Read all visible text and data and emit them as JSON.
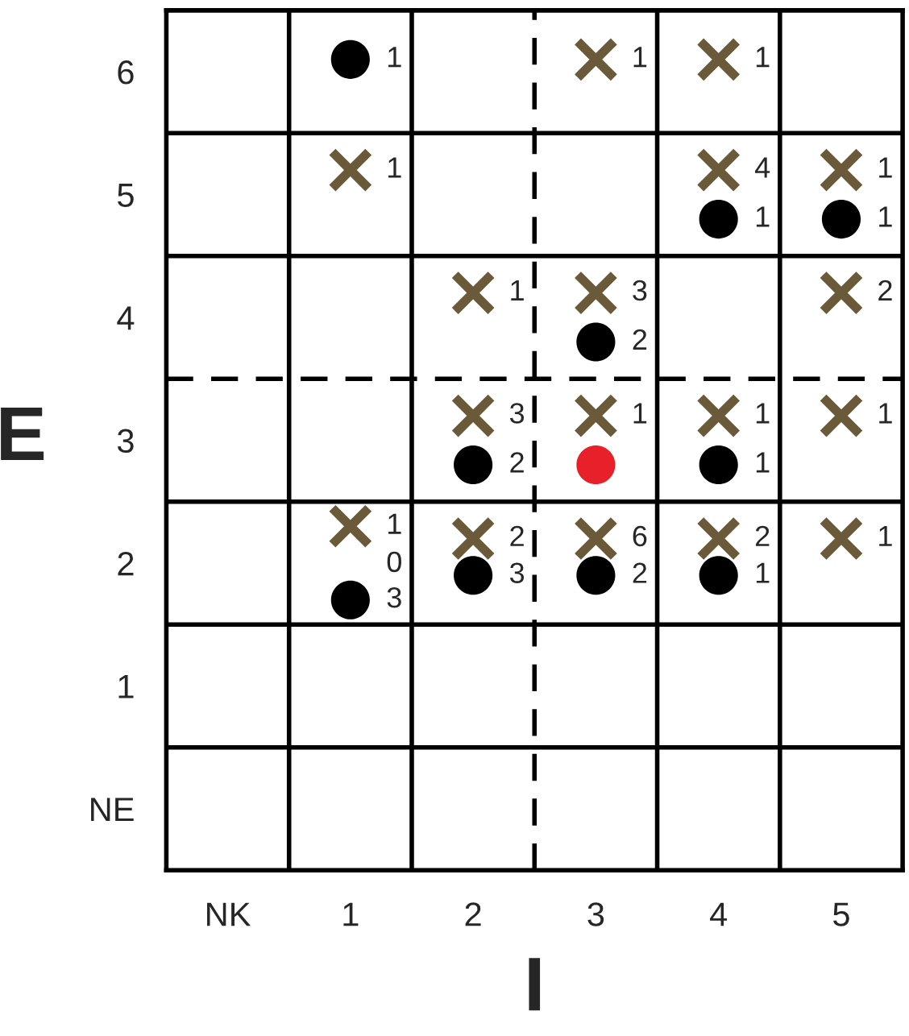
{
  "chart_data": {
    "type": "scatter",
    "xlabel": "I",
    "ylabel": "E",
    "xlim": [
      -0.5,
      5.5
    ],
    "ylim": [
      -0.5,
      6.5
    ],
    "xticks": [
      {
        "value": 0,
        "label": "NK"
      },
      1,
      2,
      3,
      4,
      5
    ],
    "yticks": [
      {
        "value": 0,
        "label": "NE"
      },
      1,
      2,
      3,
      4,
      5,
      6
    ],
    "grid": false,
    "series": [
      {
        "color": "#6b5a3a",
        "marker": "cross",
        "x": [
          3,
          4,
          1,
          4,
          5,
          2,
          3,
          5,
          2,
          3,
          4,
          5,
          1,
          2,
          3,
          4,
          5
        ],
        "values": [
          6.1,
          6.1,
          5.2,
          5.2,
          5.2,
          4.2,
          4.2,
          4.2,
          3.2,
          3.2,
          3.2,
          3.2,
          2.3,
          2.2,
          2.2,
          2.2,
          2.2
        ]
      },
      {
        "color": "#000000",
        "marker": "circle",
        "x": [
          1,
          4,
          5,
          3,
          2,
          4,
          1,
          2,
          3,
          4
        ],
        "values": [
          6.1,
          4.8,
          4.8,
          3.8,
          2.8,
          2.8,
          1.7,
          1.9,
          1.9,
          1.9
        ]
      },
      {
        "color": "#e8202a",
        "marker": "circle",
        "x": [
          3
        ],
        "values": [
          2.8
        ]
      }
    ],
    "annotations": [
      {
        "text": "1",
        "x": 3,
        "y": 6.1
      },
      {
        "text": "1",
        "x": 4,
        "y": 6.1
      },
      {
        "text": "1",
        "x": 1,
        "y": 5.2
      },
      {
        "text": "4",
        "x": 4,
        "y": 5.2
      },
      {
        "text": "1",
        "x": 5,
        "y": 5.2
      },
      {
        "text": "1",
        "x": 2,
        "y": 4.2
      },
      {
        "text": "3",
        "x": 3,
        "y": 4.2
      },
      {
        "text": "2",
        "x": 5,
        "y": 4.2
      },
      {
        "text": "3",
        "x": 2,
        "y": 3.2
      },
      {
        "text": "1",
        "x": 3,
        "y": 3.2
      },
      {
        "text": "1",
        "x": 4,
        "y": 3.2
      },
      {
        "text": "1",
        "x": 5,
        "y": 3.2
      },
      {
        "text": "1",
        "x": 1,
        "y": 2.3
      },
      {
        "text": "0",
        "x": 1,
        "y": 2.3
      },
      {
        "text": "2",
        "x": 2,
        "y": 2.2
      },
      {
        "text": "6",
        "x": 3,
        "y": 2.2
      },
      {
        "text": "2",
        "x": 4,
        "y": 2.2
      },
      {
        "text": "1",
        "x": 5,
        "y": 2.2
      },
      {
        "text": "1",
        "x": 1,
        "y": 6.1
      },
      {
        "text": "1",
        "x": 4,
        "y": 4.8
      },
      {
        "text": "1",
        "x": 5,
        "y": 4.8
      },
      {
        "text": "2",
        "x": 3,
        "y": 3.8
      },
      {
        "text": "2",
        "x": 2,
        "y": 2.8
      },
      {
        "text": "1",
        "x": 4,
        "y": 2.8
      },
      {
        "text": "3",
        "x": 1,
        "y": 1.7
      },
      {
        "text": "3",
        "x": 2,
        "y": 1.9
      },
      {
        "text": "2",
        "x": 3,
        "y": 1.9
      },
      {
        "text": "1",
        "x": 4,
        "y": 1.9
      }
    ],
    "ref_lines": [
      {
        "axis": "x",
        "value": 0.5,
        "line_style": "solid"
      },
      {
        "axis": "x",
        "value": 1.5,
        "line_style": "solid"
      },
      {
        "axis": "x",
        "value": 2.5,
        "line_style": "dashed"
      },
      {
        "axis": "x",
        "value": 3.5,
        "line_style": "solid"
      },
      {
        "axis": "x",
        "value": 4.5,
        "line_style": "solid"
      },
      {
        "axis": "y",
        "value": 0.5,
        "line_style": "solid"
      },
      {
        "axis": "y",
        "value": 1.5,
        "line_style": "solid"
      },
      {
        "axis": "y",
        "value": 2.5,
        "line_style": "solid"
      },
      {
        "axis": "y",
        "value": 3.5,
        "line_style": "dashed"
      },
      {
        "axis": "y",
        "value": 4.5,
        "line_style": "solid"
      },
      {
        "axis": "y",
        "value": 5.5,
        "line_style": "solid"
      }
    ]
  }
}
